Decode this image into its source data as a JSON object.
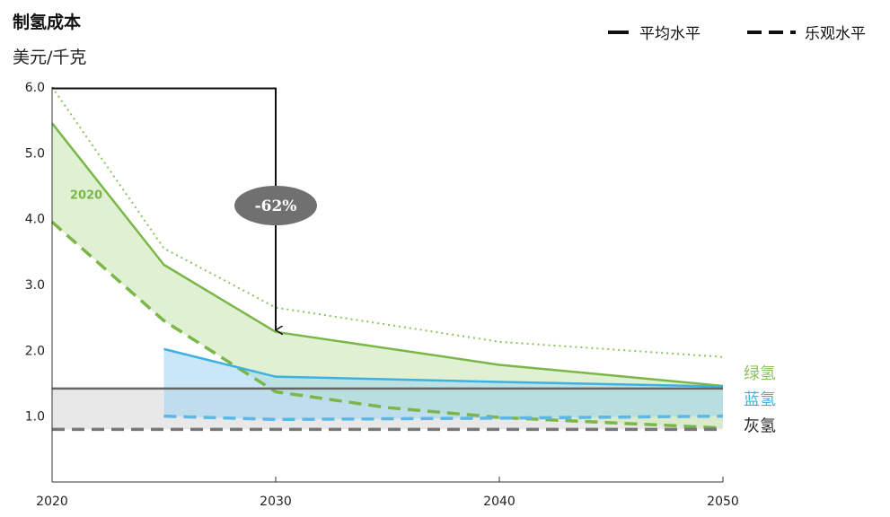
{
  "chart_data": {
    "type": "line",
    "title": "制氢成本",
    "ylabel": "美元/千克",
    "xlabel": "",
    "xlim": [
      2020,
      2050
    ],
    "ylim": [
      0,
      6.0
    ],
    "x_ticks": [
      "2020",
      "2030",
      "2040",
      "2050"
    ],
    "y_ticks": [
      "6.0",
      "5.0",
      "4.0",
      "3.0",
      "2.0",
      "1.0"
    ],
    "legend": [
      {
        "label": "平均水平",
        "style": "solid"
      },
      {
        "label": "乐观水平",
        "style": "dashed"
      }
    ],
    "series": [
      {
        "name": "绿氢 平均水平",
        "style": "solid",
        "color": "#7ab648",
        "x": [
          2020,
          2025,
          2030,
          2040,
          2050
        ],
        "y": [
          5.45,
          3.3,
          2.28,
          1.78,
          1.46
        ]
      },
      {
        "name": "绿氢 上限",
        "style": "dotted",
        "color": "#8cc262",
        "x": [
          2020,
          2025,
          2030,
          2040,
          2050
        ],
        "y": [
          6.0,
          3.55,
          2.65,
          2.13,
          1.9
        ]
      },
      {
        "name": "绿氢 乐观水平",
        "style": "dashed",
        "color": "#7ab648",
        "x": [
          2020,
          2025,
          2030,
          2035,
          2040,
          2050
        ],
        "y": [
          3.95,
          2.45,
          1.37,
          1.13,
          0.98,
          0.82
        ]
      },
      {
        "name": "蓝氢 平均水平",
        "style": "solid",
        "color": "#3eb1e0",
        "x": [
          2025,
          2030,
          2040,
          2050
        ],
        "y": [
          2.02,
          1.6,
          1.52,
          1.45
        ]
      },
      {
        "name": "蓝氢 乐观水平",
        "style": "dashed",
        "color": "#5bb8e6",
        "x": [
          2025,
          2030,
          2040,
          2050
        ],
        "y": [
          1.0,
          0.95,
          0.97,
          1.0
        ]
      },
      {
        "name": "灰氢 平均水平",
        "style": "solid",
        "color": "#666666",
        "x": [
          2020,
          2050
        ],
        "y": [
          1.42,
          1.42
        ]
      },
      {
        "name": "灰氢 乐观水平",
        "style": "dashed",
        "color": "#777777",
        "x": [
          2020,
          2050
        ],
        "y": [
          0.8,
          0.8
        ]
      }
    ],
    "series_labels": [
      {
        "text": "绿氢",
        "color": "#8cc262",
        "y": 1.57
      },
      {
        "text": "蓝氢",
        "color": "#3eb1e0",
        "y": 1.17
      },
      {
        "text": "灰氢",
        "color": "#222222",
        "y": 0.77
      }
    ],
    "annotations": {
      "year_label": {
        "text": "2020",
        "color": "#7ab648",
        "x": 2020.8,
        "y": 4.3
      },
      "reduction": {
        "text": "-62%",
        "from_x": 2020,
        "from_y": 5.98,
        "to_x": 2030,
        "to_y": 2.28,
        "badge_y": 4.2
      }
    }
  }
}
